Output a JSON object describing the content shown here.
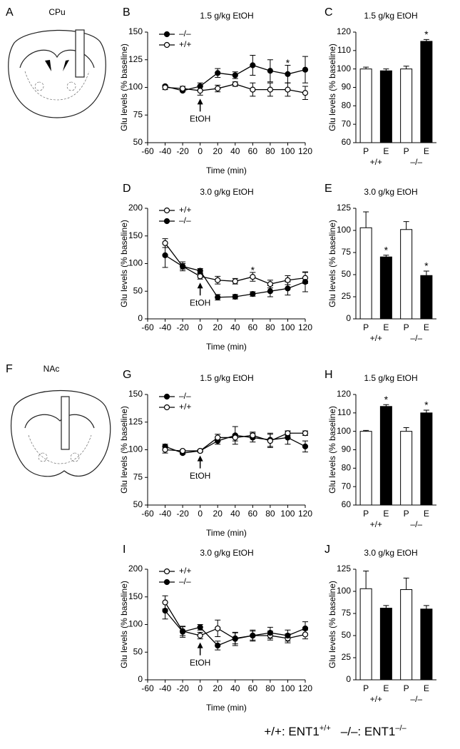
{
  "diagrams": [
    {
      "panel": "A",
      "region": "CPu"
    },
    {
      "panel": "F",
      "region": "NAc"
    }
  ],
  "chart_data": [
    {
      "type": "line",
      "panel": "B",
      "title": "1.5 g/kg EtOH",
      "xlabel": "Time (min)",
      "ylabel": "Glu levels (% baseline)",
      "x": [
        -40,
        -20,
        0,
        20,
        40,
        60,
        80,
        100,
        120
      ],
      "xlim": [
        -60,
        120
      ],
      "xticks": [
        -60,
        -40,
        -20,
        0,
        20,
        40,
        60,
        80,
        100,
        120
      ],
      "ylim": [
        50,
        150
      ],
      "yticks": [
        50,
        75,
        100,
        125,
        150
      ],
      "legend": "upper left",
      "arrow": {
        "text": "EtOH",
        "x": 0
      },
      "series": [
        {
          "name": "–/–",
          "color": "#000000",
          "values": [
            101,
            97,
            101,
            113,
            111,
            120,
            115,
            112,
            116
          ],
          "errors": [
            1,
            1,
            3,
            4,
            3,
            9,
            10,
            8,
            12
          ],
          "marks": [
            null,
            null,
            null,
            null,
            null,
            null,
            null,
            "*",
            null
          ]
        },
        {
          "name": "+/+",
          "color": "#ffffff",
          "values": [
            100,
            99,
            97,
            99,
            103,
            98,
            98,
            98,
            95
          ],
          "errors": [
            2,
            2,
            4,
            3,
            2,
            6,
            6,
            6,
            6
          ],
          "marks": [
            null,
            null,
            null,
            null,
            null,
            null,
            null,
            null,
            null
          ]
        }
      ]
    },
    {
      "type": "bar",
      "panel": "C",
      "title": "1.5 g/kg EtOH",
      "ylabel": "Glu levels (% baseline)",
      "categories": [
        "P",
        "E",
        "P",
        "E"
      ],
      "groups": [
        "+/+",
        "–/–"
      ],
      "values": [
        100,
        99,
        100,
        115
      ],
      "errors": [
        1,
        1,
        1.5,
        1
      ],
      "colors": [
        "#ffffff",
        "#000000",
        "#ffffff",
        "#000000"
      ],
      "marks": [
        null,
        null,
        null,
        "*"
      ],
      "ylim": [
        60,
        120
      ],
      "yticks": [
        60,
        70,
        80,
        90,
        100,
        110,
        120
      ]
    },
    {
      "type": "line",
      "panel": "D",
      "title": "3.0 g/kg EtOH",
      "xlabel": "Time (min)",
      "ylabel": "Glu levels (% baseline)",
      "x": [
        -40,
        -20,
        0,
        20,
        40,
        60,
        80,
        100,
        120
      ],
      "xlim": [
        -60,
        120
      ],
      "xticks": [
        -60,
        -40,
        -20,
        0,
        20,
        40,
        60,
        80,
        100,
        120
      ],
      "ylim": [
        0,
        200
      ],
      "yticks": [
        0,
        50,
        100,
        150,
        200
      ],
      "legend": "upper left",
      "arrow": {
        "text": "EtOH",
        "x": 0
      },
      "series": [
        {
          "name": "+/+",
          "color": "#ffffff",
          "values": [
            137,
            95,
            77,
            70,
            68,
            76,
            63,
            70,
            74
          ],
          "errors": [
            8,
            5,
            5,
            7,
            5,
            8,
            7,
            8,
            10
          ],
          "marks": [
            null,
            null,
            null,
            null,
            null,
            "*",
            null,
            null,
            null
          ]
        },
        {
          "name": "–/–",
          "color": "#000000",
          "values": [
            115,
            95,
            87,
            39,
            40,
            45,
            50,
            55,
            67
          ],
          "errors": [
            22,
            8,
            4,
            5,
            4,
            4,
            10,
            12,
            18
          ],
          "marks": [
            null,
            null,
            null,
            null,
            null,
            null,
            null,
            null,
            null
          ]
        }
      ]
    },
    {
      "type": "bar",
      "panel": "E",
      "title": "3.0 g/kg EtOH",
      "ylabel": "Glu levels (% baseline)",
      "categories": [
        "P",
        "E",
        "P",
        "E"
      ],
      "groups": [
        "+/+",
        "–/–"
      ],
      "values": [
        103,
        70,
        101,
        49
      ],
      "errors": [
        18,
        2,
        9,
        5
      ],
      "colors": [
        "#ffffff",
        "#000000",
        "#ffffff",
        "#000000"
      ],
      "marks": [
        null,
        "*",
        null,
        "*"
      ],
      "ylim": [
        0,
        125
      ],
      "yticks": [
        0,
        25,
        50,
        75,
        100,
        125
      ]
    },
    {
      "type": "line",
      "panel": "G",
      "title": "1.5 g/kg EtOH",
      "xlabel": "Time (min)",
      "ylabel": "Glu levels (% baseline)",
      "x": [
        -40,
        -20,
        0,
        20,
        40,
        60,
        80,
        100,
        120
      ],
      "xlim": [
        -60,
        120
      ],
      "xticks": [
        -60,
        -40,
        -20,
        0,
        20,
        40,
        60,
        80,
        100,
        120
      ],
      "ylim": [
        50,
        150
      ],
      "yticks": [
        50,
        75,
        100,
        125,
        150
      ],
      "legend": "upper left",
      "arrow": {
        "text": "EtOH",
        "x": 0
      },
      "series": [
        {
          "name": "–/–",
          "color": "#000000",
          "values": [
            103,
            97,
            99,
            108,
            113,
            111,
            109,
            111,
            103
          ],
          "errors": [
            2,
            1,
            1,
            3,
            8,
            4,
            6,
            6,
            5
          ],
          "marks": [
            null,
            null,
            null,
            null,
            null,
            null,
            null,
            null,
            null
          ]
        },
        {
          "name": "+/+",
          "color": "#ffffff",
          "values": [
            100,
            99,
            99,
            111,
            111,
            113,
            108,
            115,
            115
          ],
          "errors": [
            3,
            1,
            1,
            3,
            3,
            3,
            6,
            2,
            2
          ],
          "marks": [
            null,
            null,
            null,
            null,
            null,
            null,
            null,
            null,
            null
          ]
        }
      ]
    },
    {
      "type": "bar",
      "panel": "H",
      "title": "1.5 g/kg EtOH",
      "ylabel": "Glu levels (% baseline)",
      "categories": [
        "P",
        "E",
        "P",
        "E"
      ],
      "groups": [
        "+/+",
        "–/–"
      ],
      "values": [
        100,
        113.5,
        100,
        110
      ],
      "errors": [
        0.5,
        1,
        2,
        1.5
      ],
      "colors": [
        "#ffffff",
        "#000000",
        "#ffffff",
        "#000000"
      ],
      "marks": [
        null,
        "*",
        null,
        "*"
      ],
      "ylim": [
        60,
        120
      ],
      "yticks": [
        60,
        70,
        80,
        90,
        100,
        110,
        120
      ]
    },
    {
      "type": "line",
      "panel": "I",
      "title": "3.0 g/kg EtOH",
      "xlabel": "Time (min)",
      "ylabel": "Glu levels (% baseline)",
      "x": [
        -40,
        -20,
        0,
        20,
        40,
        60,
        80,
        100,
        120
      ],
      "xlim": [
        -60,
        120
      ],
      "xticks": [
        -60,
        -40,
        -20,
        0,
        20,
        40,
        60,
        80,
        100,
        120
      ],
      "ylim": [
        0,
        200
      ],
      "yticks": [
        0,
        50,
        100,
        150,
        200
      ],
      "legend": "upper left",
      "arrow": {
        "text": "EtOH",
        "x": 0
      },
      "series": [
        {
          "name": "+/+",
          "color": "#ffffff",
          "values": [
            140,
            88,
            80,
            93,
            74,
            80,
            80,
            75,
            82
          ],
          "errors": [
            12,
            8,
            6,
            15,
            12,
            10,
            8,
            8,
            8
          ],
          "marks": [
            null,
            null,
            null,
            null,
            null,
            null,
            null,
            null,
            null
          ]
        },
        {
          "name": "–/–",
          "color": "#000000",
          "values": [
            125,
            87,
            95,
            62,
            75,
            80,
            85,
            80,
            93
          ],
          "errors": [
            15,
            10,
            5,
            8,
            10,
            8,
            10,
            10,
            12
          ],
          "marks": [
            null,
            null,
            null,
            null,
            null,
            null,
            null,
            null,
            null
          ]
        }
      ]
    },
    {
      "type": "bar",
      "panel": "J",
      "title": "3.0 g/kg EtOH",
      "ylabel": "Glu levels (% baseline)",
      "categories": [
        "P",
        "E",
        "P",
        "E"
      ],
      "groups": [
        "+/+",
        "–/–"
      ],
      "values": [
        103,
        81,
        102,
        80
      ],
      "errors": [
        20,
        3,
        13,
        4
      ],
      "colors": [
        "#ffffff",
        "#000000",
        "#ffffff",
        "#000000"
      ],
      "marks": [
        null,
        null,
        null,
        null
      ],
      "ylim": [
        0,
        125
      ],
      "yticks": [
        0,
        25,
        50,
        75,
        100,
        125
      ]
    }
  ],
  "footnote": [
    {
      "key": "+/+:",
      "name": "ENT1",
      "sup": "+/+"
    },
    {
      "key": "–/–:",
      "name": "ENT1",
      "sup": "–/–"
    }
  ]
}
